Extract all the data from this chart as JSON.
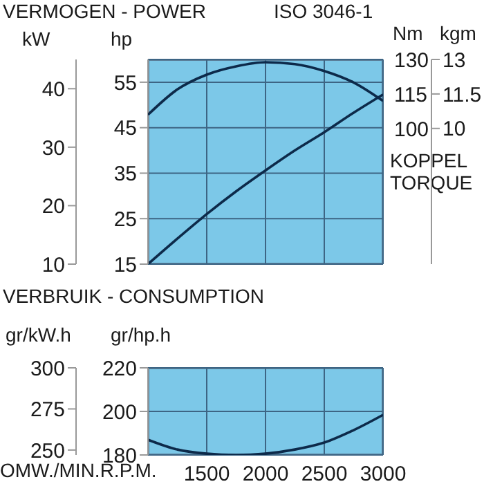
{
  "chart_data": [
    {
      "type": "line",
      "title": "VERMOGEN - POWER",
      "annotations": [
        "ISO 3046-1"
      ],
      "ylabel": "hp",
      "y2label": "kW",
      "xlim": [
        1000,
        3000
      ],
      "xticks": [
        1500,
        2000,
        2500,
        3000
      ],
      "ylim": [
        15,
        60
      ],
      "yticks": [
        15,
        25,
        35,
        45,
        55
      ],
      "y2lim": [
        10,
        45
      ],
      "y2ticks": [
        10,
        20,
        30,
        40
      ],
      "tick_labels": "y",
      "grid": true,
      "marker": "none",
      "series": [
        {
          "color": "#0d2a4a",
          "axis": "y",
          "x": [
            1000,
            1250,
            1500,
            1750,
            2000,
            2250,
            2500,
            2750,
            3000
          ],
          "values": [
            15,
            20.6,
            26,
            31,
            35.6,
            40,
            44,
            48.3,
            52.3
          ]
        }
      ]
    },
    {
      "type": "line",
      "annotations": [
        "KOPPEL TORQUE"
      ],
      "ylabel": "Nm",
      "y2label": "kgm",
      "xlim": [
        1000,
        3000
      ],
      "ylim": [
        41.2,
        130
      ],
      "yticks": [
        100,
        115,
        130
      ],
      "y2lim": [
        4.1,
        13
      ],
      "y2ticks": [
        10,
        11.5,
        13
      ],
      "tick_labels": "y",
      "marker": "none",
      "series": [
        {
          "color": "#0d2a4a",
          "axis": "y",
          "x": [
            1000,
            1250,
            1500,
            1750,
            2000,
            2250,
            2500,
            2750,
            3000
          ],
          "values": [
            106,
            117,
            123.4,
            127,
            128.8,
            128,
            125,
            120,
            112
          ]
        }
      ]
    },
    {
      "type": "line",
      "title": "VERBRUIK - CONSUMPTION",
      "xlabel": "OMW./MIN.R.P.M.",
      "ylabel": "gr/hp.h",
      "y2label": "gr/kW.h",
      "xlim": [
        1000,
        3000
      ],
      "xticks": [
        1500,
        2000,
        2500,
        3000
      ],
      "ylim": [
        180,
        220
      ],
      "yticks": [
        180,
        200,
        220
      ],
      "y2lim": [
        247,
        300
      ],
      "y2ticks": [
        250,
        275,
        300
      ],
      "grid": true,
      "marker": "none",
      "series": [
        {
          "color": "#0d2a4a",
          "axis": "y",
          "x": [
            1000,
            1250,
            1500,
            1750,
            2000,
            2250,
            2500,
            2750,
            3000
          ],
          "values": [
            187,
            182.5,
            180.6,
            180,
            180.6,
            182.5,
            185.7,
            191.4,
            198.4
          ]
        }
      ]
    }
  ]
}
